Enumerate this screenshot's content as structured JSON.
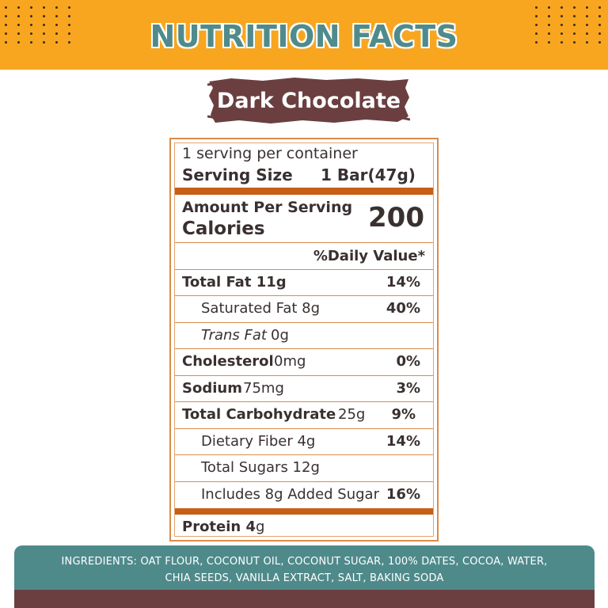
{
  "header": {
    "title": "NUTRITION FACTS"
  },
  "product": {
    "name": "Dark Chocolate"
  },
  "colors": {
    "banner": "#f8a61f",
    "title_teal": "#4f8b8c",
    "brush_brown": "#6b3f40",
    "label_orange": "#c75f16",
    "text_dark": "#3a3030",
    "footer_teal": "#4f8a8b"
  },
  "label": {
    "servings": "1 serving per container",
    "serving_size_label": "Serving Size",
    "serving_size_value": "1 Bar(47g)",
    "amount_per_serving": "Amount Per Serving",
    "calories_label": "Calories",
    "calories_value": "200",
    "daily_value_header": "%Daily Value*",
    "total_fat_label": "Total Fat 11g",
    "total_fat_dv": "14%",
    "sat_fat_label": "Saturated Fat 8g",
    "sat_fat_dv": "40%",
    "trans_fat_label": "Trans Fat",
    "trans_fat_amount": "0g",
    "cholesterol_label": "Cholesterol",
    "cholesterol_amount": "0mg",
    "cholesterol_dv": "0%",
    "sodium_label_bold": "S",
    "sodium_label_rest": "odium",
    "sodium_amount": "75mg",
    "sodium_dv": "3%",
    "carb_label": "Total Carbohydrate",
    "carb_amount": "25g",
    "carb_dv": "9%",
    "fiber_label": "Dietary Fiber 4g",
    "fiber_dv": "14%",
    "sugars_label": "Total Sugars 12g",
    "added_sugar_label": "Includes 8g Added Sugar",
    "added_sugar_dv": "16%",
    "protein_label": "Protein 4",
    "protein_unit": "g"
  },
  "footer": {
    "ingredients_line1": "INGREDIENTS: OAT FLOUR, COCONUT OIL, COCONUT SUGAR, 100% DATES, COCOA, WATER,",
    "ingredients_line2": "CHIA SEEDS, VANILLA EXTRACT, SALT, BAKING SODA"
  }
}
